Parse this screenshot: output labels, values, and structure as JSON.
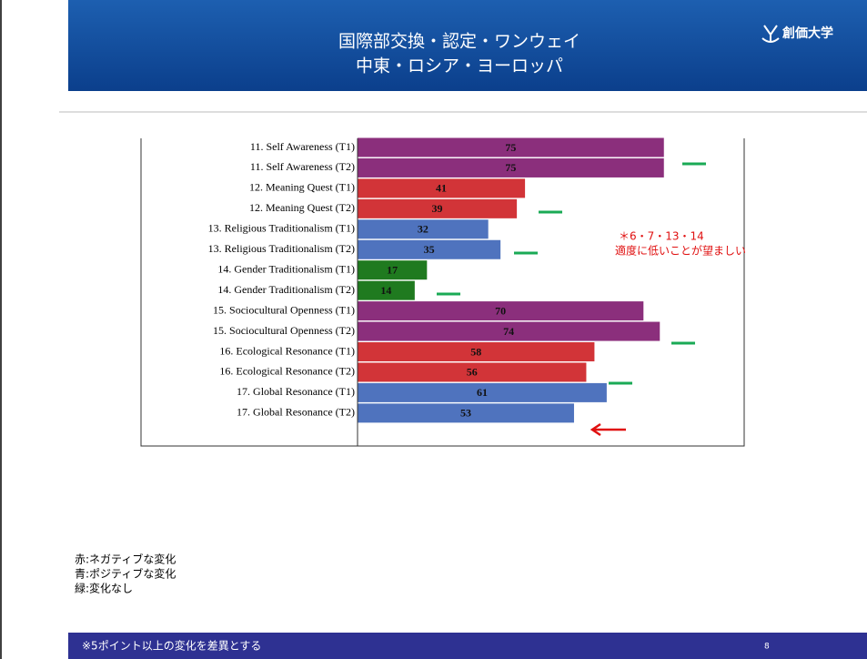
{
  "header": {
    "title_line1": "国際部交換・認定・ワンウェイ",
    "title_line2": "中東・ロシア・ヨーロッパ",
    "logo": "創価大学"
  },
  "chart_data": {
    "type": "bar",
    "categories": [
      "11. Self Awareness (T1)",
      "11. Self Awareness (T2)",
      "12. Meaning Quest (T1)",
      "12. Meaning Quest (T2)",
      "13. Religious Traditionalism (T1)",
      "13. Religious Traditionalism (T2)",
      "14. Gender Traditionalism (T1)",
      "14. Gender Traditionalism (T2)",
      "15. Sociocultural Openness (T1)",
      "15. Sociocultural Openness (T2)",
      "16. Ecological Resonance (T1)",
      "16. Ecological Resonance (T2)",
      "17. Global Resonance (T1)",
      "17. Global Resonance (T2)"
    ],
    "values": [
      75,
      75,
      41,
      39,
      32,
      35,
      17,
      14,
      70,
      74,
      58,
      56,
      61,
      53
    ],
    "colors": [
      "#8b2f7c",
      "#8b2f7c",
      "#d23438",
      "#d23438",
      "#4f73be",
      "#4f73be",
      "#1f7a1f",
      "#1f7a1f",
      "#8b2f7c",
      "#8b2f7c",
      "#d23438",
      "#d23438",
      "#4f73be",
      "#4f73be"
    ],
    "annotation_line1": "＊6・7・13・14",
    "annotation_line2": "適度に低いことが望ましい"
  },
  "legend": [
    "赤:ネガティブな変化",
    "青:ポジティブな変化",
    "緑:変化なし"
  ],
  "footer": {
    "note": "※5ポイント以上の変化を差異とする",
    "page": "8"
  }
}
